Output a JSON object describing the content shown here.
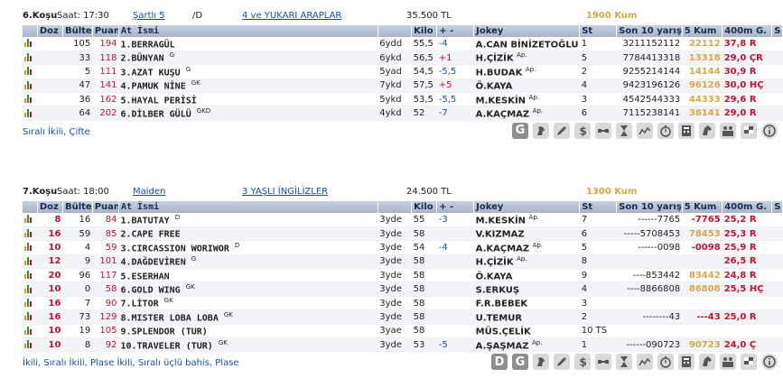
{
  "headers": {
    "doz": "Doz",
    "bulten": "Bülten",
    "puan": "Puan",
    "at_ismi": "At İsmi",
    "kilo": "Kilo",
    "plus_minus": "+ -",
    "jokey": "Jokey",
    "st": "St",
    "son10": "Son 10 yarışı",
    "k5": "5 Kum",
    "m400": "400m G.",
    "s": "S"
  },
  "race1": {
    "title": "6.Koşu",
    "time": "Saat: 17:30",
    "condition": "Şartlı 5",
    "condition_suffix": "/D",
    "category": "4 ve YUKARI ARAPLAR",
    "prize": "35.500 TL",
    "distance": "1900 Kum",
    "bet_types": "Sıralı İkili, Çifte",
    "rows": [
      {
        "doz": "",
        "bulten": "105",
        "puan": "194",
        "name": "1.BERRAGÜL",
        "sup": "",
        "age": "6ydd",
        "kilo": "55,5",
        "pm": "-4",
        "jokey": "A.CAN BİNİZETOĞLU",
        "jsup": "Ap.",
        "st": "1",
        "son10": "3211152112",
        "k5": "22112",
        "m400": "37,8 R"
      },
      {
        "doz": "",
        "bulten": "33",
        "puan": "118",
        "name": "2.BÜNYAN",
        "sup": "G",
        "age": "6ykd",
        "kilo": "56,5",
        "pm": "+1",
        "jokey": "H.ÇİZİK",
        "jsup": "Ap.",
        "st": "5",
        "son10": "7784413318",
        "k5": "13318",
        "m400": "29,0 ÇR"
      },
      {
        "doz": "",
        "bulten": "5",
        "puan": "111",
        "name": "3.AZAT KUŞU",
        "sup": "G",
        "age": "5yad",
        "kilo": "54,5",
        "pm": "-5,5",
        "jokey": "H.BUDAK",
        "jsup": "Ap.",
        "st": "2",
        "son10": "9255214144",
        "k5": "14144",
        "m400": "30,9 R"
      },
      {
        "doz": "",
        "bulten": "47",
        "puan": "141",
        "name": "4.PAMUK NİNE",
        "sup": "GK",
        "age": "7ykd",
        "kilo": "57,5",
        "pm": "+5",
        "jokey": "Ö.KAYA",
        "jsup": "",
        "st": "4",
        "son10": "9423196126",
        "k5": "96126",
        "m400": "30,0 HÇ"
      },
      {
        "doz": "",
        "bulten": "36",
        "puan": "162",
        "name": "5.HAYAL PERİSİ",
        "sup": "",
        "age": "5ykd",
        "kilo": "53,5",
        "pm": "-5,5",
        "jokey": "M.KESKİN",
        "jsup": "Ap.",
        "st": "3",
        "son10": "4542544333",
        "k5": "44333",
        "m400": "29,6 R"
      },
      {
        "doz": "",
        "bulten": "64",
        "puan": "202",
        "name": "6.DİLBER GÜLÜ",
        "sup": "GKD",
        "age": "4ykd",
        "kilo": "52",
        "pm": "-7",
        "jokey": "A.KAÇMAZ",
        "jsup": "Ap.",
        "st": "6",
        "son10": "7115238141",
        "k5": "38141",
        "m400": "29,0 R"
      }
    ]
  },
  "race2": {
    "title": "7.Koşu",
    "time": "Saat: 18:00",
    "condition": "Maiden",
    "condition_suffix": "",
    "category": "3 YAŞLI İNGİLİZLER",
    "prize": "24.500 TL",
    "distance": "1300 Kum",
    "bet_types": "İkili, Sıralı İkili, Plase İkili, Sıralı üçlü bahis, Plase",
    "rows": [
      {
        "doz": "8",
        "bulten": "16",
        "puan": "84",
        "name": "1.BATUTAY",
        "sup": "D",
        "age": "3yde",
        "kilo": "55",
        "pm": "-3",
        "jokey": "M.KESKİN",
        "jsup": "Ap.",
        "st": "7",
        "son10": "------7765",
        "k5": "-7765",
        "m400": "25,2 R"
      },
      {
        "doz": "16",
        "bulten": "59",
        "puan": "85",
        "name": "2.CAPE FREE",
        "sup": "",
        "age": "3yde",
        "kilo": "58",
        "pm": "",
        "jokey": "V.KIZMAZ",
        "jsup": "",
        "st": "6",
        "son10": "-----5708453",
        "k5": "78453",
        "m400": "25,3 R"
      },
      {
        "doz": "10",
        "bulten": "4",
        "puan": "59",
        "name": "3.CIRCASSION WORIWOR",
        "sup": "D",
        "age": "3yde",
        "kilo": "54",
        "pm": "-4",
        "jokey": "A.KAÇMAZ",
        "jsup": "Ap.",
        "st": "5",
        "son10": "------0098",
        "k5": "-0098",
        "m400": "25,9 R"
      },
      {
        "doz": "12",
        "bulten": "9",
        "puan": "101",
        "name": "4.DAĞDEVİREN",
        "sup": "G",
        "age": "3yde",
        "kilo": "58",
        "pm": "",
        "jokey": "H.ÇİZİK",
        "jsup": "Ap.",
        "st": "8",
        "son10": "",
        "k5": "",
        "m400": "26,5 R"
      },
      {
        "doz": "20",
        "bulten": "96",
        "puan": "117",
        "name": "5.ESERHAN",
        "sup": "",
        "age": "3yde",
        "kilo": "58",
        "pm": "",
        "jokey": "Ö.KAYA",
        "jsup": "",
        "st": "9",
        "son10": "----853442",
        "k5": "83442",
        "m400": "24,8 R"
      },
      {
        "doz": "10",
        "bulten": "0",
        "puan": "58",
        "name": "6.GOLD WING",
        "sup": "GK",
        "age": "3yde",
        "kilo": "58",
        "pm": "",
        "jokey": "S.ERKUŞ",
        "jsup": "",
        "st": "4",
        "son10": "----8866808",
        "k5": "86808",
        "m400": "25,5 HÇ"
      },
      {
        "doz": "16",
        "bulten": "7",
        "puan": "90",
        "name": "7.LİTOR",
        "sup": "GK",
        "age": "3yde",
        "kilo": "58",
        "pm": "",
        "jokey": "F.R.BEBEK",
        "jsup": "",
        "st": "3",
        "son10": "",
        "k5": "",
        "m400": ""
      },
      {
        "doz": "16",
        "bulten": "73",
        "puan": "129",
        "name": "8.MISTER LOBA LOBA",
        "sup": "GK",
        "age": "3yde",
        "kilo": "58",
        "pm": "",
        "jokey": "U.TEMUR",
        "jsup": "",
        "st": "2",
        "son10": "--------43",
        "k5": "---43",
        "m400": "25,0 R"
      },
      {
        "doz": "10",
        "bulten": "19",
        "puan": "105",
        "name": "9.SPLENDOR (TUR)",
        "sup": "",
        "age": "3yae",
        "kilo": "58",
        "pm": "",
        "jokey": "MÜS.ÇELİK",
        "jsup": "",
        "st": "10 TS",
        "son10": "",
        "k5": "",
        "m400": ""
      },
      {
        "doz": "10",
        "bulten": "8",
        "puan": "92",
        "name": "10.TRAVELER (TUR)",
        "sup": "GK",
        "age": "3yde",
        "kilo": "53",
        "pm": "-5",
        "jokey": "A.ŞAŞMAZ",
        "jsup": "Ap.",
        "st": "1",
        "son10": "------090723",
        "k5": "90723",
        "m400": "24,0 Ç"
      }
    ]
  },
  "toolbar": {
    "letter_d": "D",
    "letter_g": "G",
    "icons": [
      "horse-icon",
      "edit-icon",
      "dollar-icon",
      "satellite-icon",
      "hourglass-icon",
      "line-chart-icon",
      "stopwatch-icon",
      "calculator-icon",
      "horse-head-icon",
      "group-icon",
      "flag-icon",
      "info-icon"
    ]
  },
  "colors": {
    "header_bg": "#b5bfd3",
    "accent_red": "#c8102e",
    "gold": "#d9a64a",
    "link": "#1a4ea8"
  }
}
